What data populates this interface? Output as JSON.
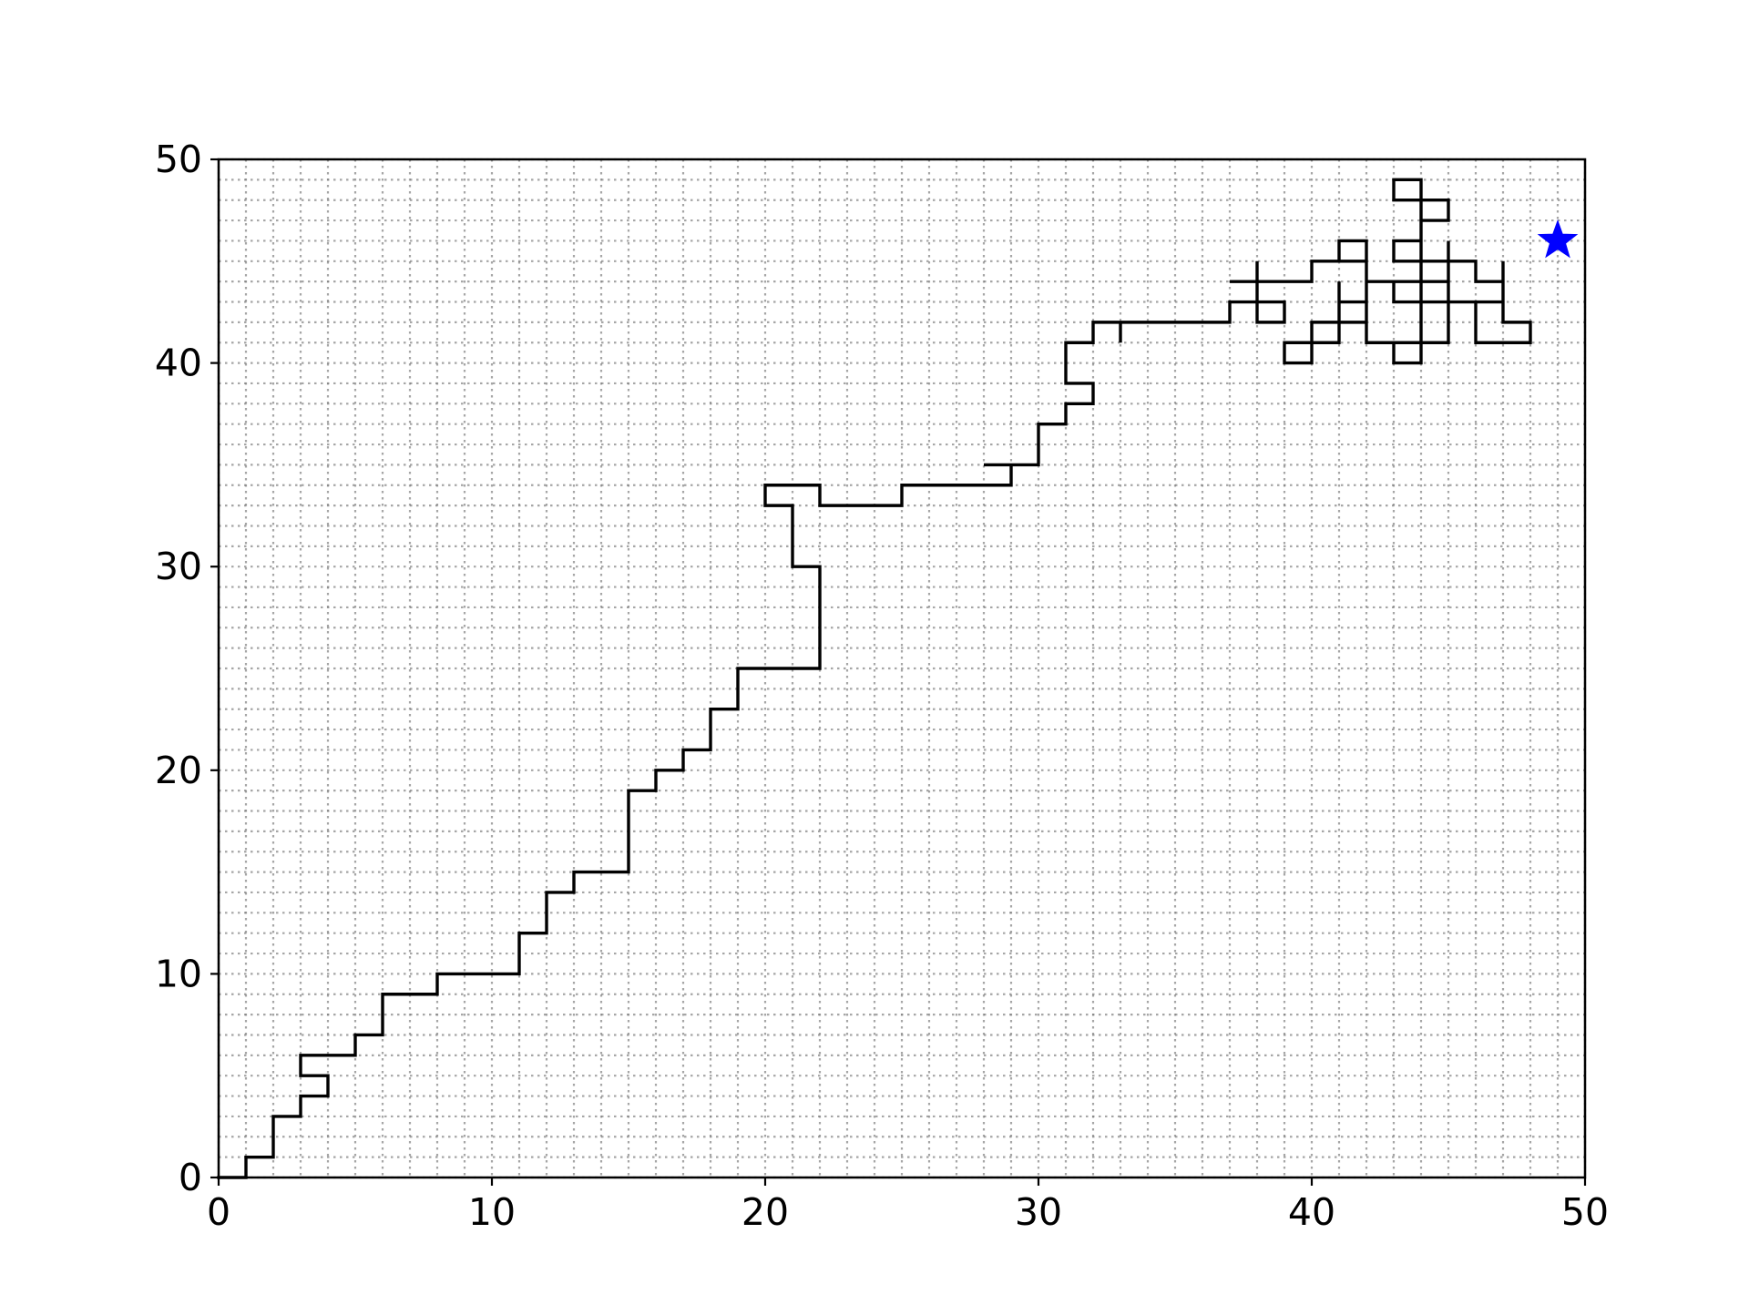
{
  "chart_data": {
    "type": "line",
    "title": "",
    "xlabel": "",
    "ylabel": "",
    "xlim": [
      0,
      50
    ],
    "ylim": [
      0,
      50
    ],
    "x_ticks": [
      0,
      10,
      20,
      30,
      40,
      50
    ],
    "y_ticks": [
      0,
      10,
      20,
      30,
      40,
      50
    ],
    "x_tick_labels": [
      "0",
      "10",
      "20",
      "30",
      "40",
      "50"
    ],
    "y_tick_labels": [
      "0",
      "10",
      "20",
      "30",
      "40",
      "50"
    ],
    "grid": "on",
    "grid_style": "dotted",
    "grid_step": 1,
    "colors": {
      "path": "#000000",
      "goal": "#0000ff",
      "grid": "#808080"
    },
    "goal_marker": "star",
    "series": [
      {
        "type": "path",
        "points": [
          [
            0,
            0
          ],
          [
            1,
            0
          ],
          [
            1,
            1
          ],
          [
            2,
            1
          ],
          [
            2,
            3
          ],
          [
            3,
            3
          ],
          [
            3,
            4
          ],
          [
            4,
            4
          ],
          [
            4,
            5
          ],
          [
            3,
            5
          ],
          [
            3,
            6
          ],
          [
            5,
            6
          ],
          [
            5,
            7
          ],
          [
            6,
            7
          ],
          [
            6,
            9
          ],
          [
            8,
            9
          ],
          [
            8,
            10
          ],
          [
            11,
            10
          ],
          [
            11,
            12
          ],
          [
            12,
            12
          ],
          [
            12,
            14
          ],
          [
            13,
            14
          ],
          [
            13,
            15
          ],
          [
            15,
            15
          ],
          [
            15,
            19
          ],
          [
            16,
            19
          ],
          [
            16,
            20
          ],
          [
            17,
            20
          ],
          [
            17,
            21
          ],
          [
            18,
            21
          ],
          [
            18,
            23
          ],
          [
            19,
            23
          ],
          [
            19,
            25
          ],
          [
            22,
            25
          ],
          [
            22,
            30
          ],
          [
            21,
            30
          ],
          [
            21,
            33
          ],
          [
            20,
            33
          ],
          [
            20,
            34
          ],
          [
            22,
            34
          ],
          [
            22,
            33
          ],
          [
            25,
            33
          ],
          [
            25,
            34
          ],
          [
            29,
            34
          ],
          [
            29,
            35
          ],
          [
            28,
            35
          ],
          [
            30,
            35
          ],
          [
            30,
            37
          ],
          [
            31,
            37
          ],
          [
            31,
            38
          ],
          [
            32,
            38
          ],
          [
            32,
            39
          ],
          [
            31,
            39
          ],
          [
            31,
            41
          ],
          [
            32,
            41
          ],
          [
            32,
            42
          ],
          [
            33,
            42
          ],
          [
            33,
            41
          ],
          [
            33,
            42
          ],
          [
            37,
            42
          ],
          [
            37,
            43
          ],
          [
            38,
            43
          ],
          [
            38,
            45
          ],
          [
            38,
            43
          ],
          [
            39,
            43
          ],
          [
            39,
            42
          ],
          [
            38,
            42
          ],
          [
            38,
            44
          ],
          [
            37,
            44
          ],
          [
            40,
            44
          ],
          [
            40,
            45
          ],
          [
            41,
            45
          ],
          [
            41,
            46
          ],
          [
            42,
            46
          ],
          [
            42,
            43
          ],
          [
            41,
            43
          ],
          [
            41,
            44
          ],
          [
            41,
            42
          ],
          [
            40,
            42
          ],
          [
            40,
            41
          ],
          [
            39,
            41
          ],
          [
            39,
            40
          ],
          [
            40,
            40
          ],
          [
            40,
            41
          ],
          [
            41,
            41
          ],
          [
            41,
            42
          ],
          [
            42,
            42
          ],
          [
            42,
            41
          ],
          [
            43,
            41
          ],
          [
            43,
            40
          ],
          [
            44,
            40
          ],
          [
            44,
            45
          ],
          [
            43,
            45
          ],
          [
            43,
            46
          ],
          [
            44,
            46
          ],
          [
            44,
            47
          ],
          [
            45,
            47
          ],
          [
            45,
            48
          ],
          [
            44,
            48
          ],
          [
            44,
            49
          ],
          [
            43,
            49
          ],
          [
            43,
            48
          ],
          [
            44,
            48
          ],
          [
            44,
            45
          ],
          [
            46,
            45
          ],
          [
            46,
            44
          ],
          [
            47,
            44
          ],
          [
            47,
            45
          ],
          [
            47,
            43
          ],
          [
            46,
            43
          ],
          [
            46,
            41
          ],
          [
            48,
            41
          ],
          [
            48,
            42
          ],
          [
            47,
            42
          ],
          [
            47,
            43
          ],
          [
            43,
            43
          ],
          [
            43,
            44
          ],
          [
            42,
            44
          ],
          [
            45,
            44
          ],
          [
            45,
            46
          ],
          [
            45,
            41
          ],
          [
            42,
            41
          ],
          [
            42,
            45
          ],
          [
            40,
            45
          ]
        ]
      }
    ],
    "goal": [
      49,
      46
    ]
  }
}
